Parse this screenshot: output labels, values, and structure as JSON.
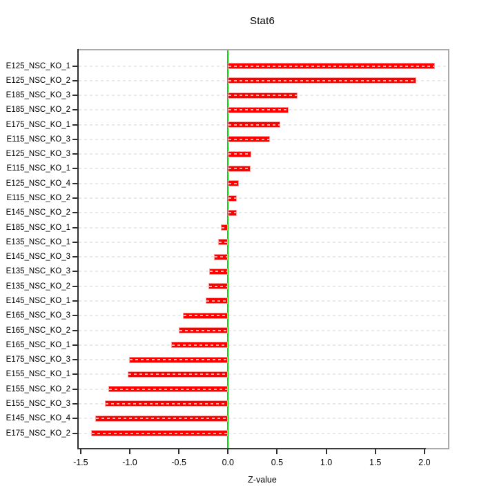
{
  "title": "Stat6",
  "xlabel": "Z-value",
  "colors": {
    "bar": "#ff0000",
    "bar_border": "#ff9f9f",
    "bar_dash": "rgba(255,255,255,0.68)",
    "zero_line": "#00dc00",
    "grid": "#e9e9e9",
    "box": "#ababab",
    "axis": "#2e2e2e"
  },
  "chart_data": {
    "type": "bar",
    "orientation": "horizontal",
    "title": "Stat6",
    "xlabel": "Z-value",
    "categories": [
      "E125_NSC_KO_1",
      "E125_NSC_KO_2",
      "E185_NSC_KO_3",
      "E185_NSC_KO_2",
      "E175_NSC_KO_1",
      "E115_NSC_KO_3",
      "E125_NSC_KO_3",
      "E115_NSC_KO_1",
      "E125_NSC_KO_4",
      "E115_NSC_KO_2",
      "E145_NSC_KO_2",
      "E185_NSC_KO_1",
      "E135_NSC_KO_1",
      "E145_NSC_KO_3",
      "E135_NSC_KO_3",
      "E135_NSC_KO_2",
      "E145_NSC_KO_1",
      "E165_NSC_KO_3",
      "E165_NSC_KO_2",
      "E165_NSC_KO_1",
      "E175_NSC_KO_3",
      "E155_NSC_KO_1",
      "E155_NSC_KO_2",
      "E155_NSC_KO_3",
      "E145_NSC_KO_4",
      "E175_NSC_KO_2"
    ],
    "values": [
      2.11,
      1.92,
      0.71,
      0.62,
      0.53,
      0.43,
      0.24,
      0.23,
      0.11,
      0.09,
      0.09,
      -0.07,
      -0.1,
      -0.14,
      -0.19,
      -0.2,
      -0.23,
      -0.46,
      -0.5,
      -0.58,
      -1.01,
      -1.02,
      -1.22,
      -1.25,
      -1.35,
      -1.39
    ],
    "xticks": [
      -1.5,
      -1.0,
      -0.5,
      0.0,
      0.5,
      1.0,
      1.5,
      2.0
    ],
    "xlim": [
      -1.52,
      2.24
    ],
    "grid": true,
    "grid_style": "dashed",
    "zero_line": true,
    "legend": false
  }
}
